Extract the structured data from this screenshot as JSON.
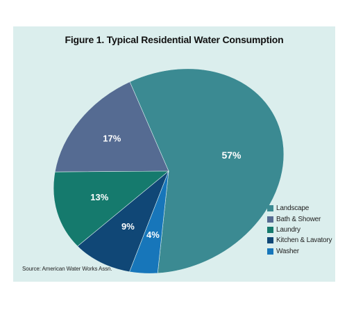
{
  "title": "Figure 1. Typical Residential Water Consumption",
  "source": "Source: American Water Works Assn.",
  "chart_data": {
    "type": "pie",
    "title": "Figure 1. Typical Residential Water Consumption",
    "categories": [
      "Landscape",
      "Bath & Shower",
      "Laundry",
      "Kitchen & Lavatory",
      "Washer"
    ],
    "values": [
      57,
      17,
      13,
      9,
      4
    ],
    "labels": [
      "57%",
      "17%",
      "13%",
      "9%",
      "4%"
    ],
    "colors": [
      "#3b8a92",
      "#556b92",
      "#157a6d",
      "#104776",
      "#1776ba"
    ],
    "legend": {
      "placement": "bottom-right",
      "entries": [
        "Landscape",
        "Bath & Shower",
        "Laundry",
        "Kitchen & Lavatory",
        "Washer"
      ]
    }
  }
}
